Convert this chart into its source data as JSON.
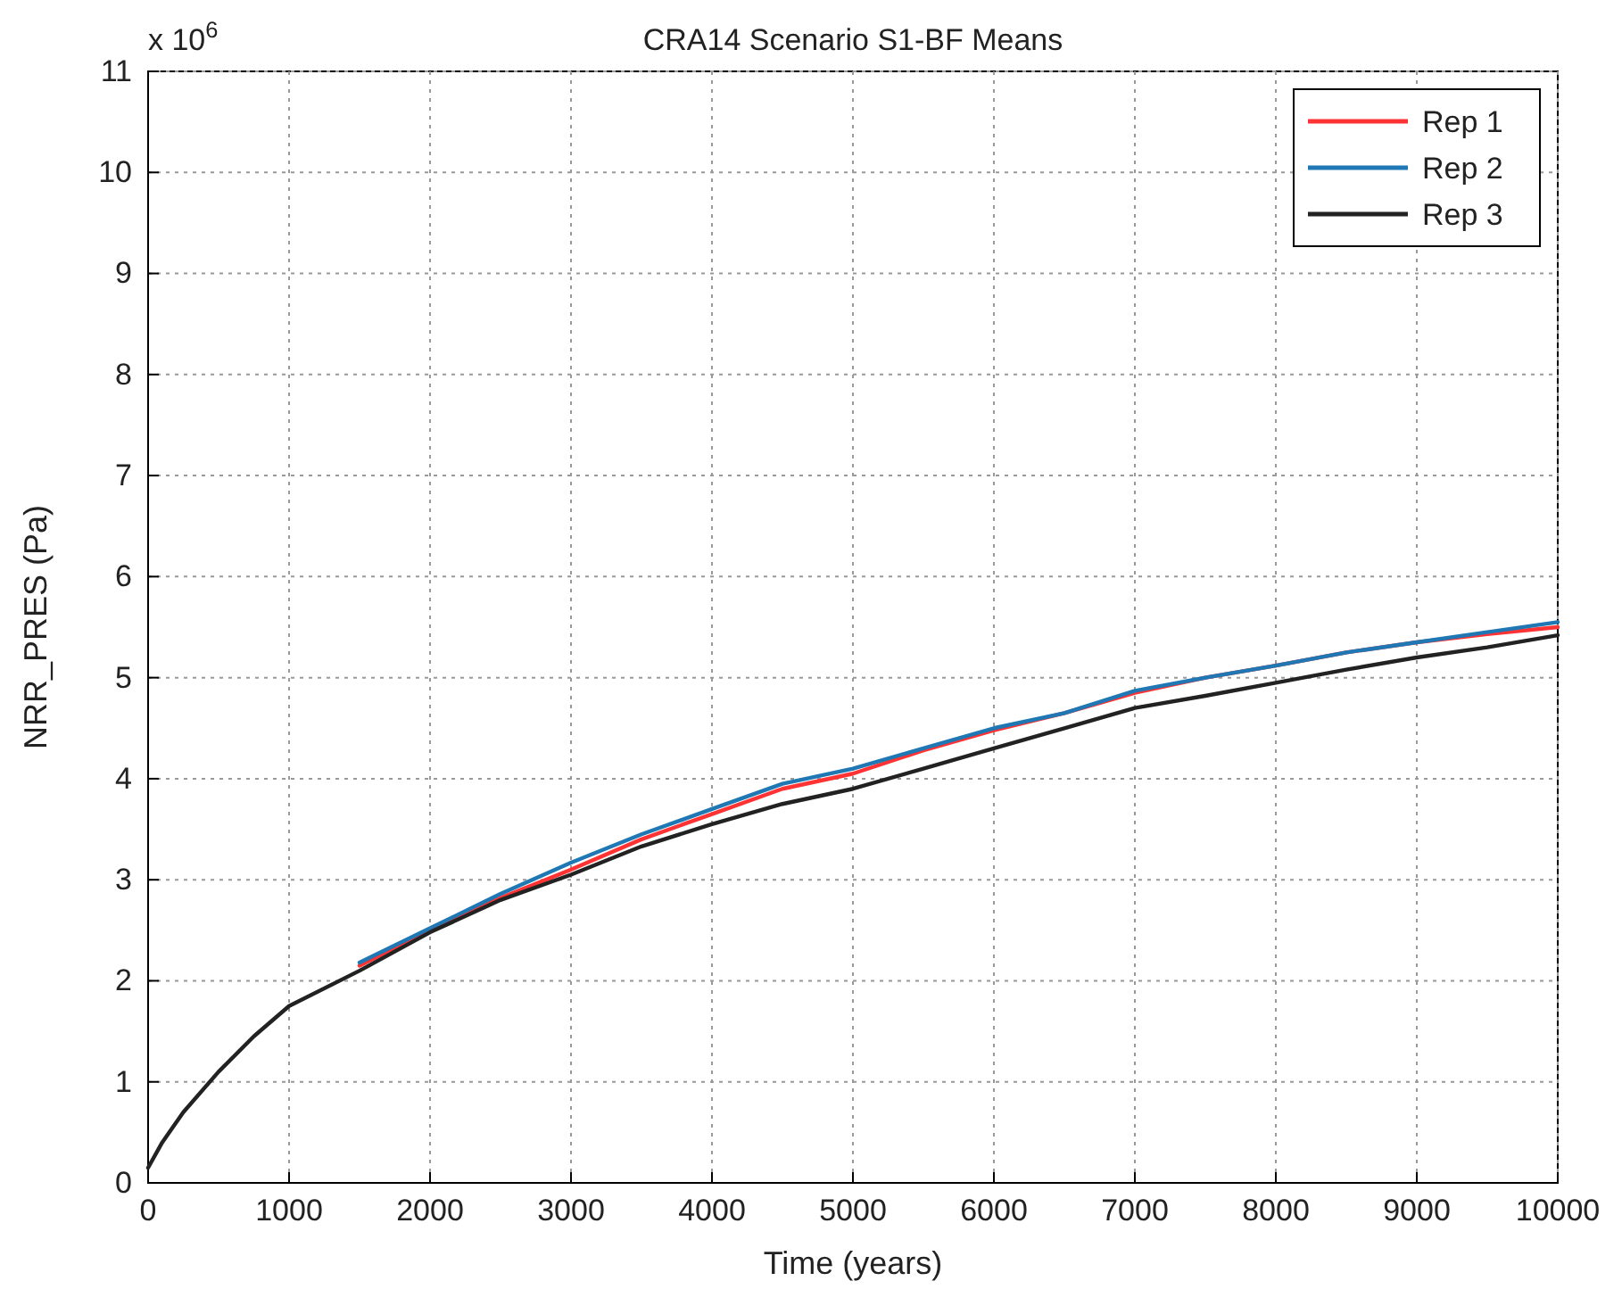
{
  "chart_data": {
    "type": "line",
    "title": "CRA14 Scenario S1-BF Means",
    "xlabel": "Time (years)",
    "ylabel": "NRR_PRES (Pa)",
    "annotations": [
      "x 10$^{6}$"
    ],
    "x": [
      0,
      100,
      250,
      500,
      750,
      1000,
      1500,
      2000,
      2500,
      3000,
      3500,
      4000,
      4500,
      5000,
      5500,
      6000,
      6500,
      7000,
      7500,
      8000,
      8500,
      9000,
      9500,
      10000
    ],
    "series": [
      {
        "name": "Rep 1",
        "color": "#ff3333",
        "values": [
          null,
          null,
          null,
          null,
          null,
          null,
          2.15,
          2.5,
          2.82,
          3.1,
          3.4,
          3.65,
          3.9,
          4.05,
          4.28,
          4.48,
          4.65,
          4.85,
          5.0,
          5.12,
          5.25,
          5.35,
          5.43,
          5.5
        ]
      },
      {
        "name": "Rep 2",
        "color": "#1f77b4",
        "values": [
          null,
          null,
          null,
          null,
          null,
          null,
          2.18,
          2.52,
          2.86,
          3.17,
          3.45,
          3.7,
          3.95,
          4.1,
          4.3,
          4.5,
          4.65,
          4.87,
          5.0,
          5.12,
          5.25,
          5.35,
          5.45,
          5.55
        ]
      },
      {
        "name": "Rep 3",
        "color": "#222222",
        "values": [
          0.15,
          0.4,
          0.7,
          1.1,
          1.45,
          1.75,
          2.1,
          2.48,
          2.8,
          3.05,
          3.33,
          3.55,
          3.75,
          3.9,
          4.1,
          4.3,
          4.5,
          4.7,
          4.82,
          4.95,
          5.08,
          5.2,
          5.3,
          5.42
        ]
      }
    ],
    "xlim": [
      0,
      10000
    ],
    "xticks": [
      0,
      1000,
      2000,
      3000,
      4000,
      5000,
      6000,
      7000,
      8000,
      9000,
      10000
    ],
    "ylim": [
      0,
      11
    ],
    "yticks": [
      0,
      1,
      2,
      3,
      4,
      5,
      6,
      7,
      8,
      9,
      10,
      11
    ],
    "grid": true,
    "legend": "top right",
    "marker": "none",
    "line_style": "solid"
  }
}
